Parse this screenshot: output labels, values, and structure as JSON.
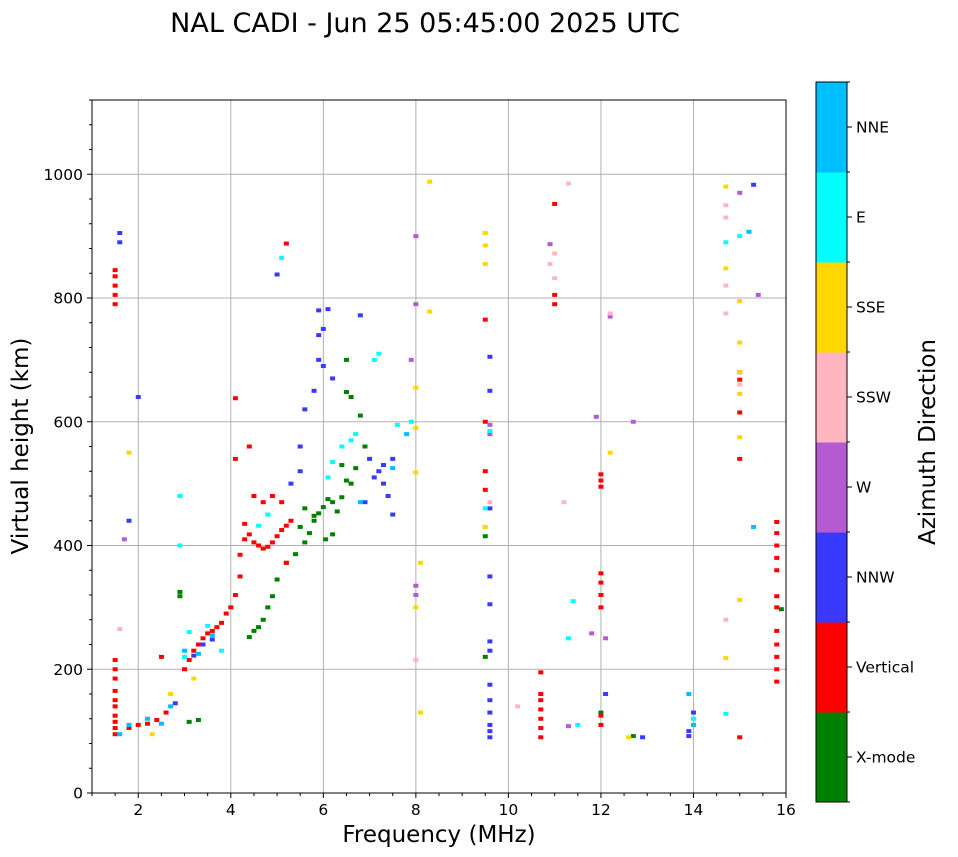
{
  "chart_data": {
    "type": "scatter",
    "title": "NAL CADI - Jun 25 05:45:00 2025 UTC",
    "xlabel": "Frequency (MHz)",
    "ylabel": "Virtual height (km)",
    "xlim": [
      1,
      16
    ],
    "ylim": [
      0,
      1120
    ],
    "xticks": [
      2,
      4,
      6,
      8,
      10,
      12,
      14,
      16
    ],
    "yticks": [
      0,
      200,
      400,
      600,
      800,
      1000
    ],
    "grid": true,
    "colorbar": {
      "label": "Azimuth Direction",
      "categories": [
        "X-mode",
        "Vertical",
        "NNW",
        "W",
        "SSW",
        "SSE",
        "E",
        "NNE"
      ],
      "colors": [
        "#008000",
        "#ff0000",
        "#3a3aff",
        "#b45ad2",
        "#ffb6c1",
        "#ffd700",
        "#00ffff",
        "#00bfff"
      ]
    },
    "series": [
      {
        "name": "X-mode",
        "points": [
          [
            2.9,
            318
          ],
          [
            2.9,
            325
          ],
          [
            3.1,
            115
          ],
          [
            3.3,
            118
          ],
          [
            4.4,
            252
          ],
          [
            4.5,
            262
          ],
          [
            4.6,
            268
          ],
          [
            4.7,
            280
          ],
          [
            4.8,
            300
          ],
          [
            4.9,
            318
          ],
          [
            5.0,
            345
          ],
          [
            5.2,
            372
          ],
          [
            5.4,
            386
          ],
          [
            5.6,
            405
          ],
          [
            5.7,
            420
          ],
          [
            5.8,
            440
          ],
          [
            5.9,
            452
          ],
          [
            6.0,
            462
          ],
          [
            6.05,
            410
          ],
          [
            6.2,
            418
          ],
          [
            6.3,
            455
          ],
          [
            6.4,
            478
          ],
          [
            6.5,
            505
          ],
          [
            6.6,
            500
          ],
          [
            6.7,
            525
          ],
          [
            6.5,
            648
          ],
          [
            6.5,
            700
          ],
          [
            6.6,
            640
          ],
          [
            6.8,
            610
          ],
          [
            6.9,
            560
          ],
          [
            6.2,
            470
          ],
          [
            6.4,
            530
          ],
          [
            5.5,
            430
          ],
          [
            5.6,
            460
          ],
          [
            5.8,
            448
          ],
          [
            6.1,
            475
          ],
          [
            9.5,
            415
          ],
          [
            9.5,
            220
          ],
          [
            12.0,
            130
          ],
          [
            12.7,
            92
          ],
          [
            15.9,
            297
          ]
        ]
      },
      {
        "name": "Vertical",
        "points": [
          [
            1.5,
            790
          ],
          [
            1.5,
            805
          ],
          [
            1.5,
            820
          ],
          [
            1.5,
            835
          ],
          [
            1.5,
            845
          ],
          [
            1.5,
            95
          ],
          [
            1.5,
            105
          ],
          [
            1.5,
            115
          ],
          [
            1.5,
            125
          ],
          [
            1.5,
            140
          ],
          [
            1.5,
            150
          ],
          [
            1.5,
            165
          ],
          [
            1.5,
            185
          ],
          [
            1.5,
            200
          ],
          [
            1.5,
            215
          ],
          [
            1.8,
            105
          ],
          [
            2.0,
            110
          ],
          [
            2.2,
            112
          ],
          [
            2.4,
            118
          ],
          [
            2.5,
            220
          ],
          [
            2.6,
            130
          ],
          [
            3.0,
            200
          ],
          [
            3.1,
            215
          ],
          [
            3.2,
            230
          ],
          [
            3.3,
            240
          ],
          [
            3.4,
            250
          ],
          [
            3.5,
            258
          ],
          [
            3.6,
            262
          ],
          [
            3.7,
            268
          ],
          [
            3.8,
            275
          ],
          [
            3.9,
            290
          ],
          [
            4.0,
            300
          ],
          [
            4.1,
            320
          ],
          [
            4.2,
            350
          ],
          [
            4.2,
            385
          ],
          [
            4.3,
            410
          ],
          [
            4.3,
            435
          ],
          [
            4.4,
            418
          ],
          [
            4.5,
            405
          ],
          [
            4.6,
            400
          ],
          [
            4.7,
            395
          ],
          [
            4.8,
            398
          ],
          [
            4.9,
            405
          ],
          [
            5.0,
            415
          ],
          [
            5.1,
            425
          ],
          [
            5.2,
            432
          ],
          [
            5.3,
            440
          ],
          [
            4.1,
            540
          ],
          [
            4.1,
            638
          ],
          [
            4.4,
            560
          ],
          [
            4.5,
            480
          ],
          [
            4.7,
            470
          ],
          [
            4.9,
            480
          ],
          [
            5.1,
            470
          ],
          [
            5.2,
            372
          ],
          [
            5.2,
            888
          ],
          [
            9.5,
            490
          ],
          [
            9.5,
            520
          ],
          [
            9.5,
            765
          ],
          [
            9.5,
            600
          ],
          [
            10.7,
            90
          ],
          [
            10.7,
            105
          ],
          [
            10.7,
            120
          ],
          [
            10.7,
            135
          ],
          [
            10.7,
            150
          ],
          [
            10.7,
            160
          ],
          [
            10.7,
            195
          ],
          [
            11.0,
            790
          ],
          [
            11.0,
            805
          ],
          [
            11.0,
            952
          ],
          [
            12.0,
            495
          ],
          [
            12.0,
            505
          ],
          [
            12.0,
            515
          ],
          [
            12.0,
            300
          ],
          [
            12.0,
            320
          ],
          [
            12.0,
            340
          ],
          [
            12.0,
            355
          ],
          [
            12.0,
            110
          ],
          [
            12.0,
            125
          ],
          [
            15.0,
            90
          ],
          [
            15.0,
            540
          ],
          [
            15.0,
            615
          ],
          [
            15.0,
            668
          ],
          [
            15.0,
            680
          ],
          [
            15.8,
            180
          ],
          [
            15.8,
            200
          ],
          [
            15.8,
            220
          ],
          [
            15.8,
            240
          ],
          [
            15.8,
            262
          ],
          [
            15.8,
            300
          ],
          [
            15.8,
            318
          ],
          [
            15.8,
            360
          ],
          [
            15.8,
            380
          ],
          [
            15.8,
            400
          ],
          [
            15.8,
            420
          ],
          [
            15.8,
            438
          ]
        ]
      },
      {
        "name": "NNW",
        "points": [
          [
            1.6,
            890
          ],
          [
            1.6,
            905
          ],
          [
            1.8,
            440
          ],
          [
            2.0,
            640
          ],
          [
            2.8,
            145
          ],
          [
            3.2,
            222
          ],
          [
            3.4,
            240
          ],
          [
            3.6,
            248
          ],
          [
            5.0,
            838
          ],
          [
            5.3,
            500
          ],
          [
            5.5,
            520
          ],
          [
            5.5,
            560
          ],
          [
            5.6,
            620
          ],
          [
            5.8,
            650
          ],
          [
            5.9,
            700
          ],
          [
            5.9,
            740
          ],
          [
            5.9,
            780
          ],
          [
            6.0,
            750
          ],
          [
            6.0,
            690
          ],
          [
            6.1,
            782
          ],
          [
            6.2,
            670
          ],
          [
            6.8,
            772
          ],
          [
            7.0,
            540
          ],
          [
            7.1,
            510
          ],
          [
            7.2,
            520
          ],
          [
            7.3,
            500
          ],
          [
            7.4,
            480
          ],
          [
            7.3,
            530
          ],
          [
            7.5,
            450
          ],
          [
            7.5,
            540
          ],
          [
            6.9,
            470
          ],
          [
            9.6,
            90
          ],
          [
            9.6,
            100
          ],
          [
            9.6,
            110
          ],
          [
            9.6,
            130
          ],
          [
            9.6,
            150
          ],
          [
            9.6,
            175
          ],
          [
            9.6,
            230
          ],
          [
            9.6,
            245
          ],
          [
            9.6,
            305
          ],
          [
            9.6,
            350
          ],
          [
            9.6,
            460
          ],
          [
            9.6,
            650
          ],
          [
            9.6,
            705
          ],
          [
            12.1,
            160
          ],
          [
            12.9,
            90
          ],
          [
            13.9,
            92
          ],
          [
            13.9,
            100
          ],
          [
            14.0,
            130
          ],
          [
            15.3,
            983
          ]
        ]
      },
      {
        "name": "W",
        "points": [
          [
            1.7,
            410
          ],
          [
            8.0,
            790
          ],
          [
            8.0,
            900
          ],
          [
            7.9,
            700
          ],
          [
            8.0,
            320
          ],
          [
            8.0,
            335
          ],
          [
            9.6,
            580
          ],
          [
            9.6,
            595
          ],
          [
            10.9,
            887
          ],
          [
            11.3,
            108
          ],
          [
            11.8,
            258
          ],
          [
            11.9,
            608
          ],
          [
            12.1,
            250
          ],
          [
            12.2,
            770
          ],
          [
            12.7,
            600
          ],
          [
            15.0,
            970
          ],
          [
            15.4,
            805
          ]
        ]
      },
      {
        "name": "SSW",
        "points": [
          [
            1.6,
            265
          ],
          [
            8.0,
            215
          ],
          [
            9.6,
            470
          ],
          [
            10.2,
            140
          ],
          [
            10.9,
            855
          ],
          [
            11.0,
            872
          ],
          [
            11.2,
            470
          ],
          [
            11.3,
            985
          ],
          [
            11.0,
            832
          ],
          [
            12.2,
            775
          ],
          [
            14.7,
            930
          ],
          [
            14.7,
            950
          ],
          [
            14.7,
            820
          ],
          [
            14.7,
            775
          ],
          [
            14.7,
            280
          ],
          [
            15.0,
            660
          ],
          [
            15.0,
            900
          ]
        ]
      },
      {
        "name": "SSE",
        "points": [
          [
            1.8,
            550
          ],
          [
            2.3,
            95
          ],
          [
            2.7,
            160
          ],
          [
            3.2,
            185
          ],
          [
            8.0,
            655
          ],
          [
            8.0,
            590
          ],
          [
            8.0,
            518
          ],
          [
            8.0,
            300
          ],
          [
            8.1,
            372
          ],
          [
            8.1,
            130
          ],
          [
            8.3,
            988
          ],
          [
            8.3,
            778
          ],
          [
            9.5,
            905
          ],
          [
            9.5,
            885
          ],
          [
            9.5,
            855
          ],
          [
            9.5,
            430
          ],
          [
            12.2,
            550
          ],
          [
            12.6,
            90
          ],
          [
            14.7,
            980
          ],
          [
            14.7,
            848
          ],
          [
            14.7,
            218
          ],
          [
            15.0,
            795
          ],
          [
            15.0,
            728
          ],
          [
            15.0,
            680
          ],
          [
            15.0,
            645
          ],
          [
            15.0,
            575
          ],
          [
            15.0,
            312
          ]
        ]
      },
      {
        "name": "E",
        "points": [
          [
            2.9,
            400
          ],
          [
            2.9,
            480
          ],
          [
            3.0,
            220
          ],
          [
            3.1,
            260
          ],
          [
            3.5,
            270
          ],
          [
            3.8,
            230
          ],
          [
            4.6,
            432
          ],
          [
            4.8,
            450
          ],
          [
            5.1,
            865
          ],
          [
            6.1,
            510
          ],
          [
            6.2,
            535
          ],
          [
            6.4,
            560
          ],
          [
            6.6,
            570
          ],
          [
            6.7,
            580
          ],
          [
            7.1,
            700
          ],
          [
            7.2,
            710
          ],
          [
            7.6,
            595
          ],
          [
            7.9,
            600
          ],
          [
            9.5,
            460
          ],
          [
            9.6,
            585
          ],
          [
            11.4,
            310
          ],
          [
            11.3,
            250
          ],
          [
            11.5,
            110
          ],
          [
            14.0,
            120
          ],
          [
            14.7,
            890
          ],
          [
            14.7,
            128
          ],
          [
            15.0,
            900
          ]
        ]
      },
      {
        "name": "NNE",
        "points": [
          [
            1.6,
            95
          ],
          [
            1.8,
            110
          ],
          [
            2.2,
            120
          ],
          [
            2.5,
            112
          ],
          [
            2.7,
            140
          ],
          [
            3.0,
            230
          ],
          [
            3.3,
            225
          ],
          [
            3.6,
            255
          ],
          [
            6.8,
            470
          ],
          [
            7.5,
            525
          ],
          [
            7.8,
            580
          ],
          [
            13.9,
            160
          ],
          [
            14.0,
            110
          ],
          [
            15.3,
            430
          ],
          [
            15.2,
            907
          ]
        ]
      }
    ]
  }
}
